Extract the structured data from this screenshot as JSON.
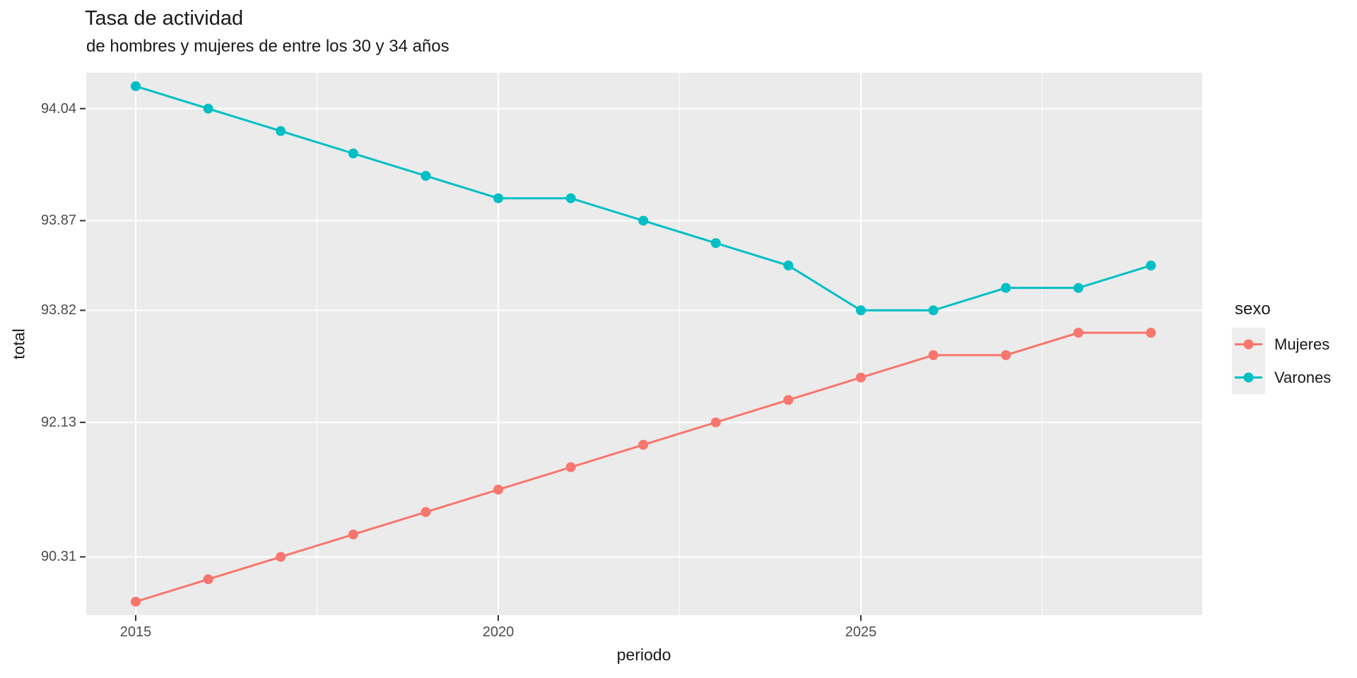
{
  "title": "Tasa de actividad",
  "subtitle": "de hombres y mujeres de entre los 30 y 34 años",
  "x_axis_label": "periodo",
  "y_axis_label": "total",
  "legend": {
    "title": "sexo",
    "items": [
      {
        "label": "Mujeres",
        "color": "#F8766D"
      },
      {
        "label": "Varones",
        "color": "#00BFC4"
      }
    ]
  },
  "colors": {
    "panel_background": "#EBEBEB",
    "gridline": "#FFFFFF",
    "tick_mark": "#333333",
    "axis_text": "#4D4D4D",
    "title_text": "#1A1A1A",
    "legend_key_background": "#EEEEEE",
    "mujeres": "#F8766D",
    "varones": "#00BFC4"
  },
  "chart_data": {
    "type": "line",
    "title": "Tasa de actividad",
    "subtitle": "de hombres y mujeres de entre los 30 y 34 años",
    "xlabel": "periodo",
    "ylabel": "total",
    "legend_title": "sexo",
    "legend_position": "right",
    "grid": true,
    "x": [
      2015,
      2016,
      2017,
      2018,
      2019,
      2020,
      2021,
      2022,
      2023,
      2024,
      2025,
      2026,
      2027,
      2028,
      2029
    ],
    "x_ticks": [
      2015,
      2020,
      2025
    ],
    "x_minor_ticks": [
      2017.5,
      2022.5,
      2027.5
    ],
    "y_axis_type": "discrete",
    "y_axis_note": "total values are plotted as evenly spaced categories (24 distinct levels); labeled breaks 94.04, 93.87, 93.82, 92.13, 90.31 are exact, intermediate values estimated",
    "y_tick_labels": [
      "94.04",
      "93.87",
      "93.82",
      "92.13",
      "90.31"
    ],
    "series": [
      {
        "name": "Mujeres",
        "color": "#F8766D",
        "values": [
          89.7,
          90.0,
          90.31,
          90.61,
          90.91,
          91.22,
          91.52,
          91.83,
          92.13,
          92.43,
          92.74,
          93.04,
          93.04,
          93.34,
          93.34
        ]
      },
      {
        "name": "Varones",
        "color": "#00BFC4",
        "values": [
          94.07,
          94.04,
          94.01,
          93.98,
          93.95,
          93.9,
          93.9,
          93.87,
          93.86,
          93.84,
          93.82,
          93.82,
          93.83,
          93.83,
          93.84
        ]
      }
    ]
  }
}
